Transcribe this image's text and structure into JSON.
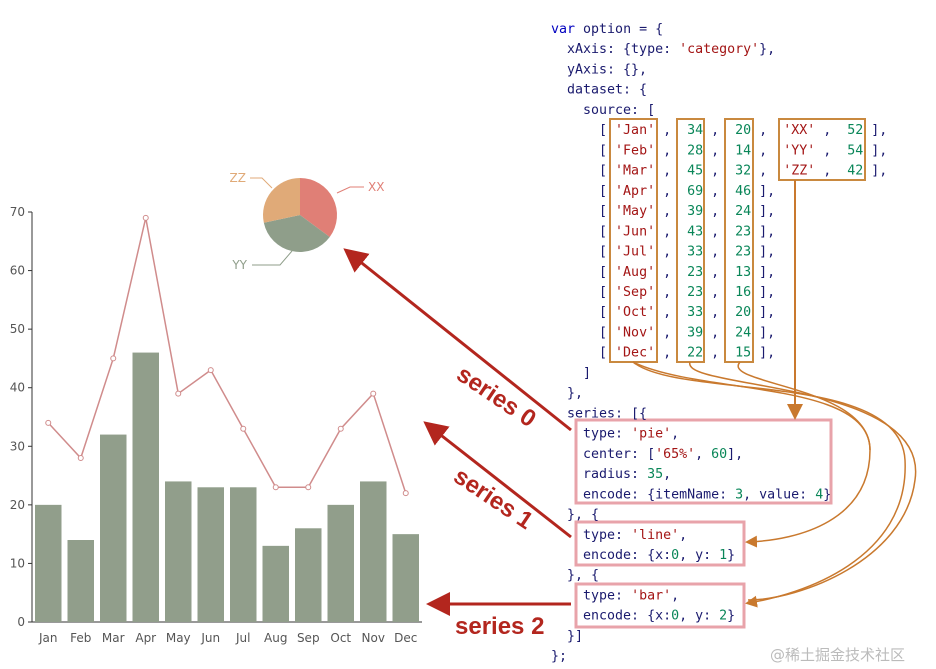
{
  "chart_data": [
    {
      "type": "pie",
      "categories": [
        "XX",
        "YY",
        "ZZ"
      ],
      "values": [
        52,
        54,
        42
      ],
      "colors": [
        "#e07f76",
        "#8f9e8a",
        "#e0aa78"
      ]
    },
    {
      "type": "combo",
      "categories": [
        "Jan",
        "Feb",
        "Mar",
        "Apr",
        "May",
        "Jun",
        "Jul",
        "Aug",
        "Sep",
        "Oct",
        "Nov",
        "Dec"
      ],
      "series": [
        {
          "type": "line",
          "color": "#d08c8c",
          "values": [
            34,
            28,
            45,
            69,
            39,
            43,
            33,
            23,
            23,
            33,
            39,
            22
          ]
        },
        {
          "type": "bar",
          "color": "#919e8b",
          "values": [
            20,
            14,
            32,
            46,
            24,
            23,
            23,
            13,
            16,
            20,
            24,
            15
          ]
        }
      ],
      "ylim": [
        0,
        70
      ],
      "yticks": [
        0,
        10,
        20,
        30,
        40,
        50,
        60,
        70
      ]
    }
  ],
  "code": [
    "var option = {",
    "  xAxis: {type: 'category'},",
    "  yAxis: {},",
    "  dataset: {",
    "    source: [",
    "      [ 'Jan' ,  34 ,  20 ,  'XX' ,  52 ],",
    "      [ 'Feb' ,  28 ,  14 ,  'YY' ,  54 ],",
    "      [ 'Mar' ,  45 ,  32 ,  'ZZ' ,  42 ],",
    "      [ 'Apr' ,  69 ,  46 ],",
    "      [ 'May' ,  39 ,  24 ],",
    "      [ 'Jun' ,  43 ,  23 ],",
    "      [ 'Jul' ,  33 ,  23 ],",
    "      [ 'Aug' ,  23 ,  13 ],",
    "      [ 'Sep' ,  23 ,  16 ],",
    "      [ 'Oct' ,  33 ,  20 ],",
    "      [ 'Nov' ,  39 ,  24 ],",
    "      [ 'Dec' ,  22 ,  15 ],",
    "    ]",
    "  },",
    "  series: [{",
    "    type: 'pie',",
    "    center: ['65%', 60],",
    "    radius: 35,",
    "    encode: {itemName: 3, value: 4}",
    "  }, {",
    "    type: 'line',",
    "    encode: {x:0, y: 1}",
    "  }, {",
    "    type: 'bar',",
    "    encode: {x:0, y: 2}",
    "  }]",
    "};"
  ],
  "annotations": [
    "series 0",
    "series 1",
    "series 2"
  ],
  "watermark": "@稀土掘金技术社区"
}
